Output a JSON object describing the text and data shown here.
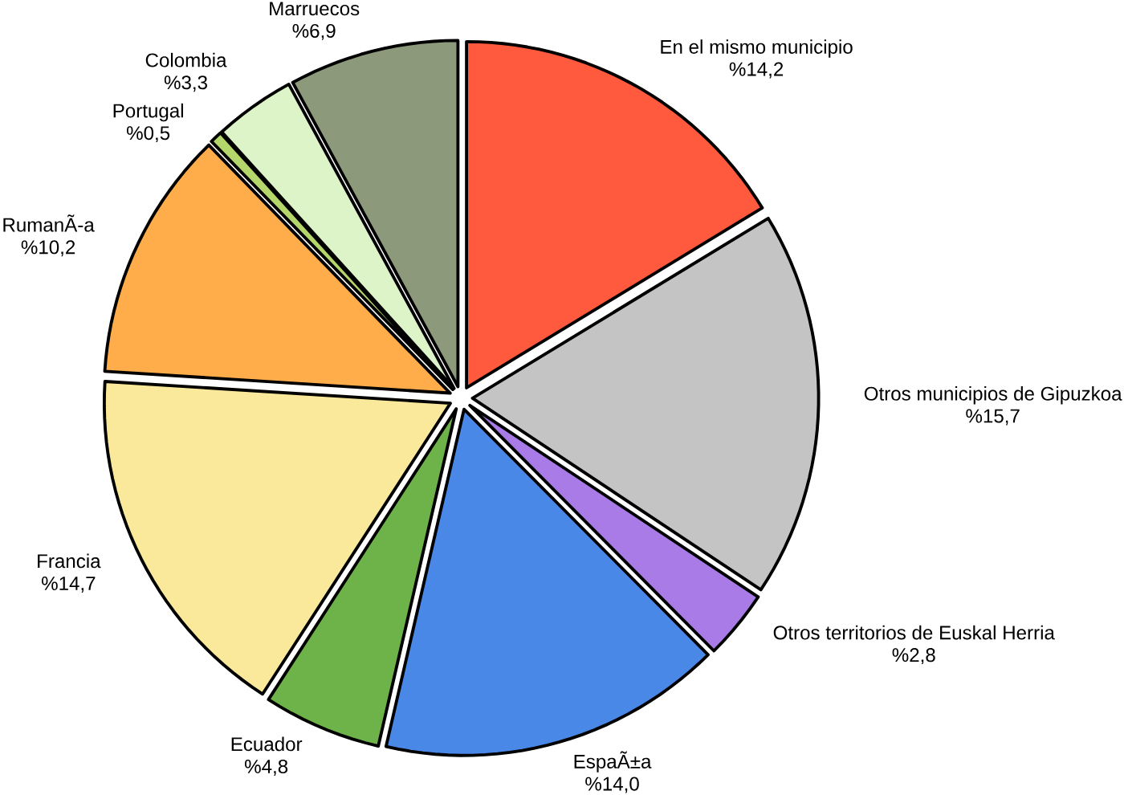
{
  "chart_data": {
    "type": "pie",
    "categories": [
      "En el mismo municipio",
      "Otros municipios de Gipuzkoa",
      "Otros territorios de Euskal Herria",
      "EspaÃ±a",
      "Ecuador",
      "Francia",
      "RumanÃ-a",
      "Portugal",
      "Colombia",
      "Marruecos"
    ],
    "values": [
      14.2,
      15.7,
      2.8,
      14.0,
      4.8,
      14.7,
      10.2,
      0.5,
      3.3,
      6.9
    ],
    "value_labels": [
      "%14,2",
      "%15,7",
      "%2,8",
      "%14,0",
      "%4,8",
      "%14,7",
      "%10,2",
      "%0,5",
      "%3,3",
      "%6,9"
    ],
    "colors": [
      "#ff5a3e",
      "#c4c4c4",
      "#a87be6",
      "#4a88e8",
      "#6db349",
      "#fae89b",
      "#ffad4a",
      "#b5d66a",
      "#dcf4c8",
      "#8c9a7b"
    ]
  }
}
